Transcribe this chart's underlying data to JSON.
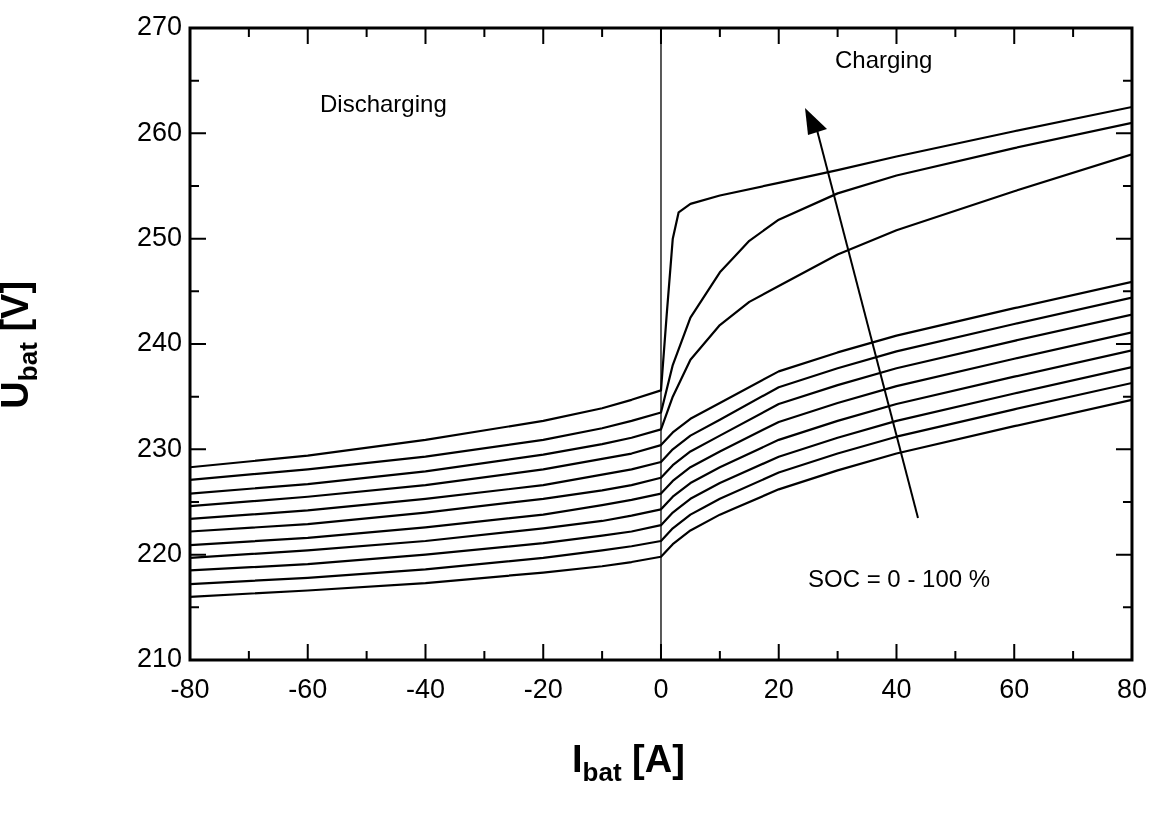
{
  "chart_data": {
    "type": "line",
    "xlabel": "I$_{bat}$  [A]",
    "ylabel": "U$_{bat}$ [V]",
    "xlim": [
      -80,
      80
    ],
    "ylim": [
      210,
      270
    ],
    "xticks": [
      -80,
      {
        "value": -70,
        "label": null
      },
      -60,
      {
        "value": -50,
        "label": null
      },
      -40,
      {
        "value": -30,
        "label": null
      },
      -20,
      {
        "value": -10,
        "label": null
      },
      0,
      {
        "value": 10,
        "label": null
      },
      20,
      {
        "value": 30,
        "label": null
      },
      40,
      {
        "value": 50,
        "label": null
      },
      60,
      {
        "value": 70,
        "label": null
      },
      80
    ],
    "yticks": [
      210,
      {
        "value": 215,
        "label": null
      },
      220,
      {
        "value": 225,
        "label": null
      },
      230,
      {
        "value": 235,
        "label": null
      },
      240,
      {
        "value": 245,
        "label": null
      },
      250,
      {
        "value": 255,
        "label": null
      },
      260,
      {
        "value": 265,
        "label": null
      },
      270
    ],
    "grid": false,
    "legend": false,
    "marker": "none",
    "line_style": "solid",
    "ref_lines": [
      {
        "axis": "x",
        "value": 0,
        "color": "#000000"
      }
    ],
    "annotations": [
      "Discharging",
      "Charging",
      "SOC = 0 - 100 %"
    ],
    "series": [
      {
        "color": "#000000",
        "x": [
          -80,
          -60,
          -40,
          -20,
          -10,
          -5,
          0,
          2,
          5,
          10,
          20,
          30,
          40,
          60,
          80
        ],
        "values": [
          216.0,
          216.6,
          217.3,
          218.3,
          218.9,
          219.3,
          219.8,
          221.0,
          222.3,
          223.8,
          226.2,
          228.0,
          229.6,
          232.2,
          234.7
        ]
      },
      {
        "color": "#000000",
        "x": [
          -80,
          -60,
          -40,
          -20,
          -10,
          -5,
          0,
          2,
          5,
          10,
          20,
          30,
          40,
          60,
          80
        ],
        "values": [
          217.2,
          217.8,
          218.6,
          219.7,
          220.4,
          220.8,
          221.3,
          222.5,
          223.8,
          225.3,
          227.8,
          229.6,
          231.2,
          233.8,
          236.3
        ]
      },
      {
        "color": "#000000",
        "x": [
          -80,
          -60,
          -40,
          -20,
          -10,
          -5,
          0,
          2,
          5,
          10,
          20,
          30,
          40,
          60,
          80
        ],
        "values": [
          218.5,
          219.1,
          220.0,
          221.1,
          221.8,
          222.2,
          222.8,
          224.0,
          225.3,
          226.8,
          229.3,
          231.1,
          232.7,
          235.3,
          237.8
        ]
      },
      {
        "color": "#000000",
        "x": [
          -80,
          -60,
          -40,
          -20,
          -10,
          -5,
          0,
          2,
          5,
          10,
          20,
          30,
          40,
          60,
          80
        ],
        "values": [
          219.7,
          220.4,
          221.3,
          222.5,
          223.2,
          223.7,
          224.3,
          225.5,
          226.8,
          228.3,
          230.9,
          232.7,
          234.3,
          236.9,
          239.4
        ]
      },
      {
        "color": "#000000",
        "x": [
          -80,
          -60,
          -40,
          -20,
          -10,
          -5,
          0,
          2,
          5,
          10,
          20,
          30,
          40,
          60,
          80
        ],
        "values": [
          220.9,
          221.6,
          222.6,
          223.8,
          224.7,
          225.2,
          225.8,
          227.0,
          228.3,
          229.8,
          232.6,
          234.4,
          236.0,
          238.6,
          241.1
        ]
      },
      {
        "color": "#000000",
        "x": [
          -80,
          -60,
          -40,
          -20,
          -10,
          -5,
          0,
          2,
          5,
          10,
          20,
          30,
          40,
          60,
          80
        ],
        "values": [
          222.2,
          222.9,
          224.0,
          225.3,
          226.1,
          226.6,
          227.3,
          228.5,
          229.8,
          231.3,
          234.3,
          236.1,
          237.7,
          240.3,
          242.8
        ]
      },
      {
        "color": "#000000",
        "x": [
          -80,
          -60,
          -40,
          -20,
          -10,
          -5,
          0,
          2,
          5,
          10,
          20,
          30,
          40,
          60,
          80
        ],
        "values": [
          223.4,
          224.2,
          225.3,
          226.6,
          227.6,
          228.1,
          228.8,
          230.0,
          231.3,
          232.8,
          235.9,
          237.7,
          239.3,
          241.9,
          244.4
        ]
      },
      {
        "color": "#000000",
        "x": [
          -80,
          -60,
          -40,
          -20,
          -10,
          -5,
          0,
          2,
          5,
          10,
          20,
          30,
          40,
          60,
          80
        ],
        "values": [
          224.6,
          225.5,
          226.6,
          228.1,
          229.1,
          229.6,
          230.4,
          231.6,
          232.9,
          234.4,
          237.4,
          239.2,
          240.8,
          243.4,
          245.9
        ]
      },
      {
        "color": "#000000",
        "x": [
          -80,
          -60,
          -40,
          -20,
          -10,
          -5,
          0,
          2,
          5,
          10,
          15,
          20,
          30,
          40,
          60,
          80
        ],
        "values": [
          225.8,
          226.7,
          227.9,
          229.5,
          230.5,
          231.1,
          231.9,
          235.0,
          238.5,
          241.8,
          244.0,
          245.5,
          248.5,
          250.8,
          254.5,
          258.0
        ]
      },
      {
        "color": "#000000",
        "x": [
          -80,
          -60,
          -40,
          -20,
          -10,
          -5,
          0,
          2,
          5,
          10,
          15,
          20,
          30,
          40,
          60,
          80
        ],
        "values": [
          227.1,
          228.1,
          229.3,
          230.9,
          232.0,
          232.7,
          233.5,
          238.0,
          242.5,
          246.8,
          249.8,
          251.8,
          254.3,
          256.0,
          258.6,
          261.0
        ]
      },
      {
        "color": "#000000",
        "x": [
          -80,
          -60,
          -40,
          -20,
          -10,
          -5,
          0,
          1,
          2,
          3,
          5,
          10,
          20,
          30,
          40,
          60,
          80
        ],
        "values": [
          228.3,
          229.4,
          230.9,
          232.7,
          233.9,
          234.7,
          235.6,
          243.0,
          250.0,
          252.5,
          253.3,
          254.1,
          255.3,
          256.5,
          257.8,
          260.2,
          262.5
        ]
      }
    ]
  }
}
